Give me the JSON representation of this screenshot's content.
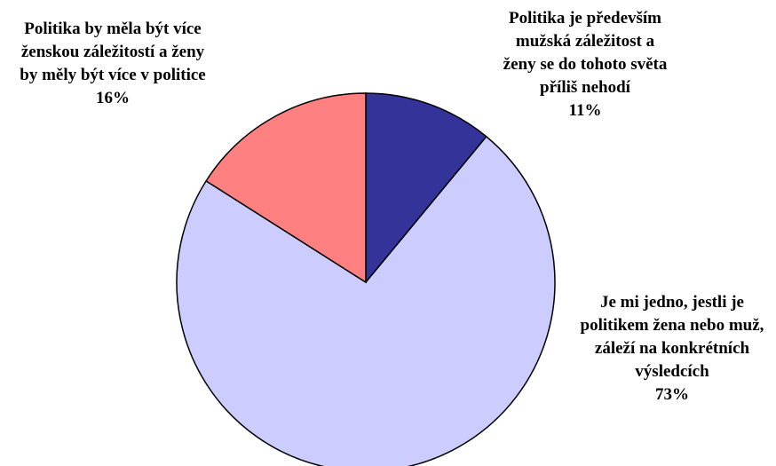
{
  "chart_data": {
    "type": "pie",
    "categories": [
      "Politika je především mužská záležitost a ženy se do tohoto světa příliš nehodí",
      "Je mi jedno, jestli je politikem žena nebo muž, záleží na konkrétních výsledcích",
      "Politika by měla být více ženskou záležitostí a ženy by měly být více v politice"
    ],
    "values": [
      11,
      73,
      16
    ],
    "value_labels": [
      "11%",
      "73%",
      "16%"
    ],
    "colors": [
      "#333399",
      "#ccccff",
      "#ff8080"
    ]
  }
}
